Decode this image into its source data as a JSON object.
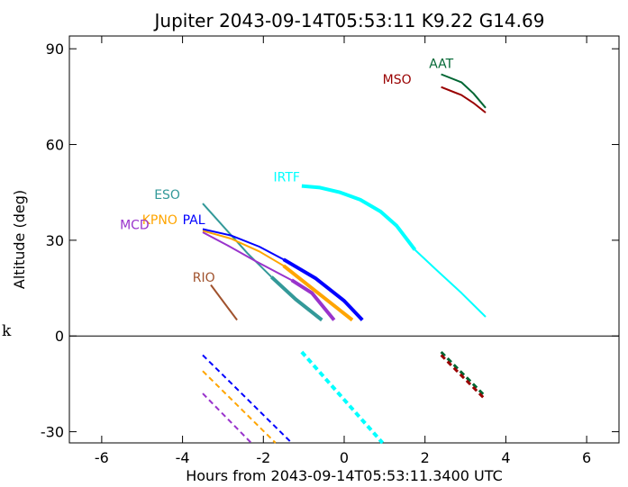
{
  "chart_data": {
    "type": "line",
    "title": "Jupiter 2043-09-14T05:53:11  K9.22  G14.69",
    "xlabel": "Hours from 2043-09-14T05:53:11.3400 UTC",
    "ylabel": "Altitude (deg)",
    "side_label": "k",
    "xlim": [
      -6.8,
      6.8
    ],
    "ylim": [
      -33.5,
      94
    ],
    "xticks": [
      -6,
      -4,
      -2,
      0,
      2,
      4,
      6
    ],
    "yticks": [
      -30,
      0,
      30,
      60,
      90
    ],
    "xtick_labels": [
      "-6",
      "-4",
      "-2",
      "0",
      "2",
      "4",
      "6"
    ],
    "ytick_labels": [
      "-30",
      "0",
      "30",
      "60",
      "90"
    ],
    "zero_line": 0,
    "grid": false,
    "series": [
      {
        "name": "AAT",
        "color": "#006633",
        "label_at": [
          2.1,
          84
        ],
        "segments": [
          {
            "style": "solid",
            "width": 2,
            "points": [
              [
                2.4,
                82
              ],
              [
                2.9,
                79.5
              ],
              [
                3.2,
                76
              ],
              [
                3.5,
                71.5
              ]
            ]
          },
          {
            "style": "dashed",
            "width": 3,
            "points": [
              [
                2.4,
                -5
              ],
              [
                3.5,
                -19
              ]
            ]
          }
        ]
      },
      {
        "name": "MSO",
        "color": "#990000",
        "label_at": [
          0.95,
          79
        ],
        "segments": [
          {
            "style": "solid",
            "width": 2,
            "points": [
              [
                2.4,
                78
              ],
              [
                2.9,
                75.5
              ],
              [
                3.2,
                73
              ],
              [
                3.5,
                70
              ]
            ]
          },
          {
            "style": "dashed",
            "width": 3,
            "points": [
              [
                2.4,
                -6
              ],
              [
                3.5,
                -20
              ]
            ]
          }
        ]
      },
      {
        "name": "IRTF",
        "color": "#00FFFF",
        "label_at": [
          -1.75,
          48.5
        ],
        "segments": [
          {
            "style": "solid",
            "width": 2,
            "points": [
              [
                1.75,
                27
              ],
              [
                2.3,
                20.5
              ],
              [
                2.9,
                13.5
              ],
              [
                3.5,
                6
              ]
            ]
          },
          {
            "style": "solid",
            "width": 4,
            "points": [
              [
                -1.05,
                47
              ],
              [
                -0.6,
                46.5
              ],
              [
                -0.1,
                45
              ],
              [
                0.4,
                42.7
              ],
              [
                0.9,
                39
              ],
              [
                1.3,
                34.5
              ],
              [
                1.75,
                27
              ]
            ]
          },
          {
            "style": "dashed",
            "width": 4,
            "points": [
              [
                -1.05,
                -5
              ],
              [
                0.95,
                -33.5
              ]
            ]
          }
        ]
      },
      {
        "name": "ESO",
        "color": "#339999",
        "label_at": [
          -4.7,
          43
        ],
        "segments": [
          {
            "style": "solid",
            "width": 2,
            "points": [
              [
                -3.5,
                41.5
              ],
              [
                -2.4,
                26
              ],
              [
                -1.8,
                18.5
              ]
            ]
          },
          {
            "style": "solid",
            "width": 4,
            "points": [
              [
                -1.8,
                18.5
              ],
              [
                -1.2,
                11.5
              ],
              [
                -0.55,
                5
              ]
            ]
          }
        ]
      },
      {
        "name": "KPNO",
        "color": "#FFA500",
        "label_at": [
          -5.0,
          35
        ],
        "segments": [
          {
            "style": "solid",
            "width": 2,
            "points": [
              [
                -3.5,
                33
              ],
              [
                -2.8,
                30.5
              ],
              [
                -2.1,
                26.5
              ],
              [
                -1.5,
                22
              ]
            ]
          },
          {
            "style": "solid",
            "width": 4,
            "points": [
              [
                -1.5,
                22
              ],
              [
                -0.8,
                15
              ],
              [
                -0.15,
                8.5
              ],
              [
                0.2,
                5
              ]
            ]
          },
          {
            "style": "dashed",
            "width": 2,
            "points": [
              [
                -3.5,
                -11
              ],
              [
                -1.7,
                -33.5
              ]
            ]
          }
        ]
      },
      {
        "name": "MCD",
        "color": "#9933CC",
        "label_at": [
          -5.55,
          33.5
        ],
        "segments": [
          {
            "style": "solid",
            "width": 2,
            "points": [
              [
                -3.5,
                32.5
              ],
              [
                -2.9,
                28.5
              ],
              [
                -2.2,
                23.5
              ],
              [
                -1.3,
                17.5
              ]
            ]
          },
          {
            "style": "solid",
            "width": 4,
            "points": [
              [
                -1.3,
                17.5
              ],
              [
                -0.8,
                13.5
              ],
              [
                -0.25,
                5
              ]
            ]
          },
          {
            "style": "dashed",
            "width": 2,
            "points": [
              [
                -3.5,
                -18
              ],
              [
                -2.3,
                -33.5
              ]
            ]
          }
        ]
      },
      {
        "name": "PAL",
        "color": "#0000FF",
        "label_at": [
          -4.0,
          35
        ],
        "segments": [
          {
            "style": "solid",
            "width": 2,
            "points": [
              [
                -3.5,
                33.5
              ],
              [
                -2.8,
                31.5
              ],
              [
                -2.1,
                28
              ],
              [
                -1.5,
                24
              ]
            ]
          },
          {
            "style": "solid",
            "width": 4,
            "points": [
              [
                -1.5,
                24
              ],
              [
                -0.7,
                18
              ],
              [
                0,
                11
              ],
              [
                0.45,
                5
              ]
            ]
          },
          {
            "style": "dashed",
            "width": 2,
            "points": [
              [
                -3.5,
                -6
              ],
              [
                -1.3,
                -33.5
              ]
            ]
          }
        ]
      },
      {
        "name": "RIO",
        "color": "#A0522D",
        "label_at": [
          -3.75,
          17
        ],
        "segments": [
          {
            "style": "solid",
            "width": 2,
            "points": [
              [
                -3.3,
                16
              ],
              [
                -2.65,
                5
              ]
            ]
          }
        ]
      }
    ]
  }
}
